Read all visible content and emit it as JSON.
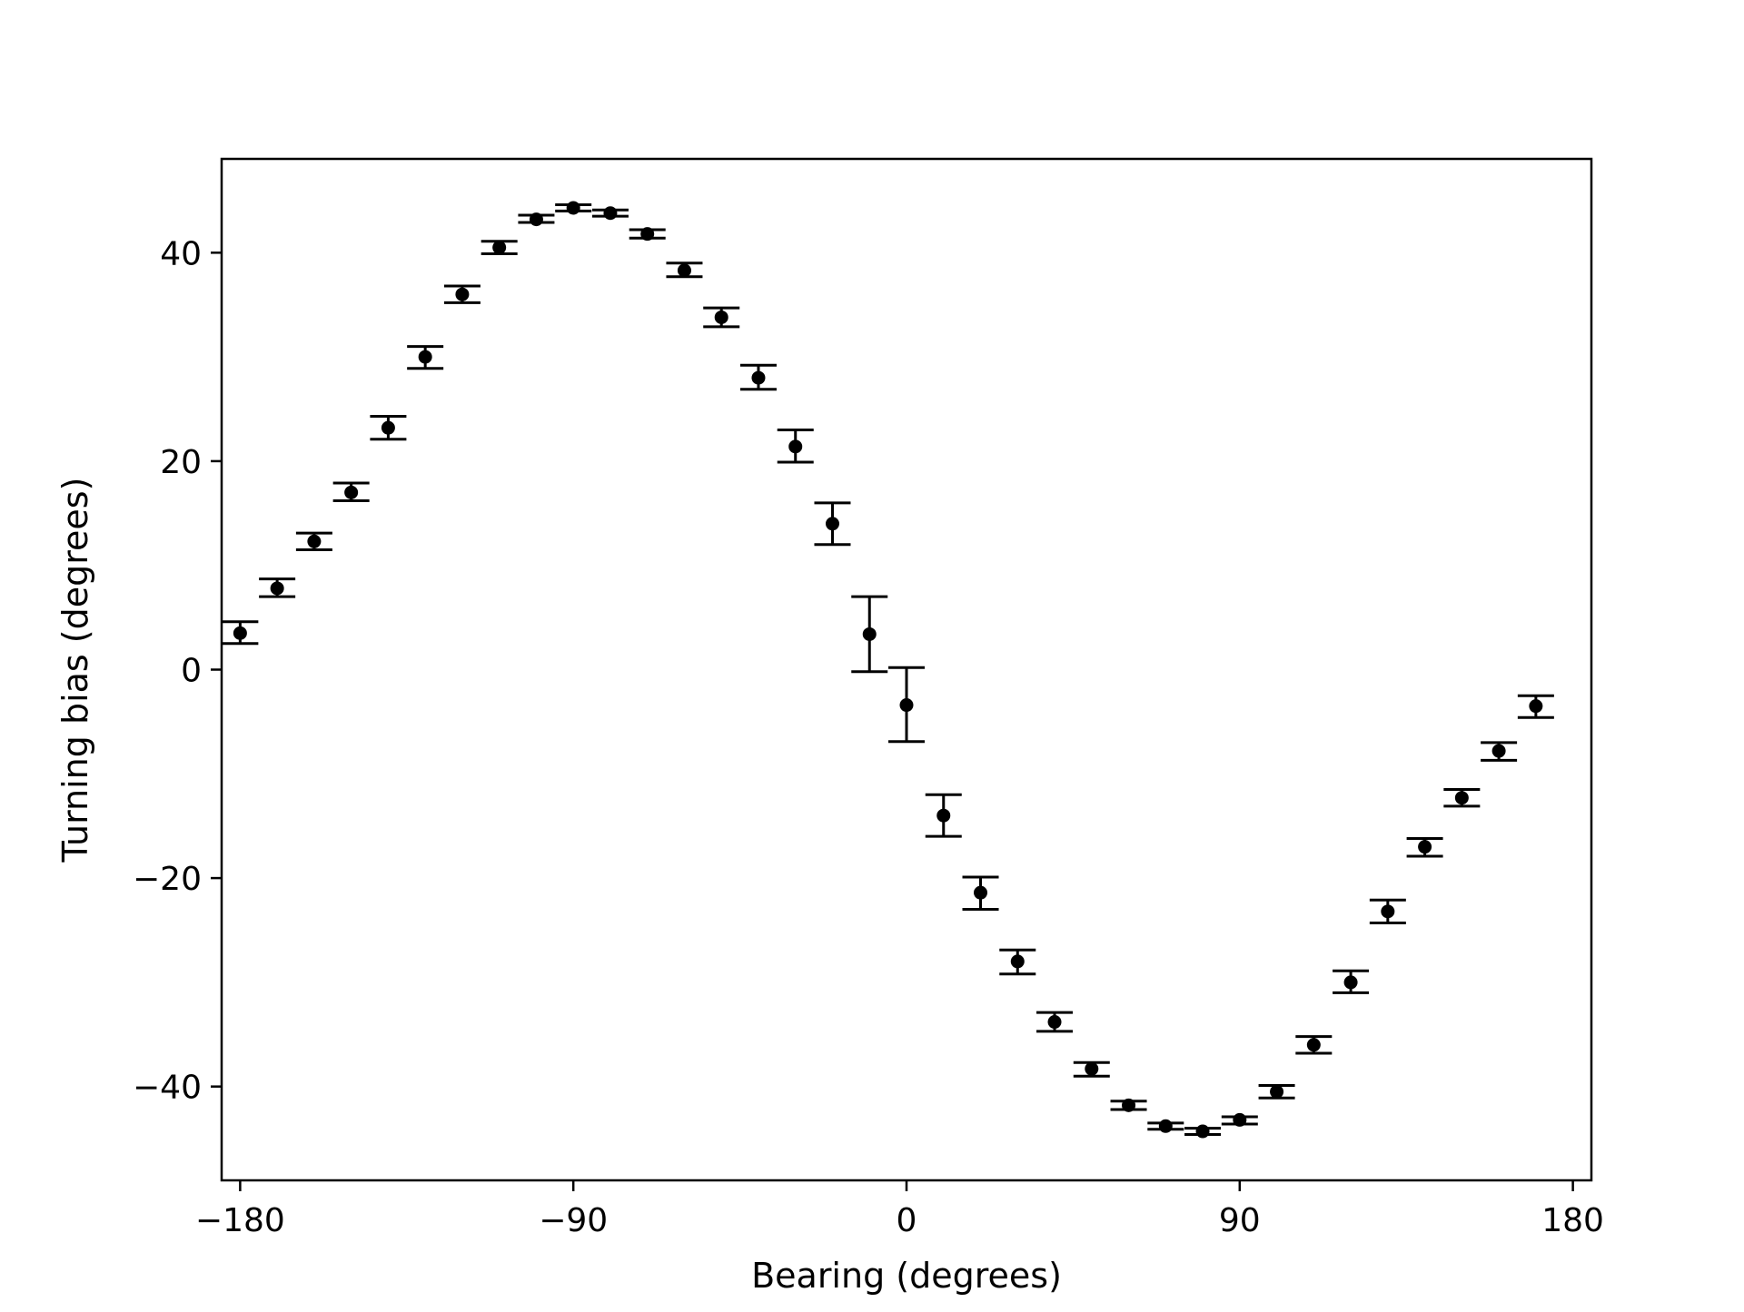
{
  "chart_data": {
    "type": "scatter",
    "title": "",
    "xlabel": "Bearing (degrees)",
    "ylabel": "Turning bias (degrees)",
    "xlim": [
      -185,
      185
    ],
    "ylim": [
      -49,
      49
    ],
    "xticks": [
      -180,
      -90,
      0,
      90,
      180
    ],
    "xtick_labels": [
      "−180",
      "−90",
      "0",
      "90",
      "180"
    ],
    "yticks": [
      40,
      20,
      0,
      -20,
      -40
    ],
    "ytick_labels": [
      "40",
      "20",
      "0",
      "−20",
      "−40"
    ],
    "grid": false,
    "legend": null,
    "marker_color": "#000000",
    "series": [
      {
        "points": [
          {
            "x": -180,
            "y": 3.5,
            "yerr_low": 2.5,
            "yerr_high": 4.6
          },
          {
            "x": -170,
            "y": 7.8,
            "yerr_low": 7.0,
            "yerr_high": 8.7
          },
          {
            "x": -160,
            "y": 12.3,
            "yerr_low": 11.5,
            "yerr_high": 13.1
          },
          {
            "x": -150,
            "y": 17.0,
            "yerr_low": 16.2,
            "yerr_high": 17.9
          },
          {
            "x": -140,
            "y": 23.2,
            "yerr_low": 22.1,
            "yerr_high": 24.3
          },
          {
            "x": -130,
            "y": 30.0,
            "yerr_low": 28.9,
            "yerr_high": 31.0
          },
          {
            "x": -120,
            "y": 36.0,
            "yerr_low": 35.2,
            "yerr_high": 36.8
          },
          {
            "x": -110,
            "y": 40.5,
            "yerr_low": 39.9,
            "yerr_high": 41.1
          },
          {
            "x": -100,
            "y": 43.2,
            "yerr_low": 42.9,
            "yerr_high": 43.6
          },
          {
            "x": -90,
            "y": 44.3,
            "yerr_low": 44.0,
            "yerr_high": 44.6
          },
          {
            "x": -80,
            "y": 43.8,
            "yerr_low": 43.5,
            "yerr_high": 44.1
          },
          {
            "x": -70,
            "y": 41.8,
            "yerr_low": 41.4,
            "yerr_high": 42.2
          },
          {
            "x": -60,
            "y": 38.3,
            "yerr_low": 37.7,
            "yerr_high": 39.0
          },
          {
            "x": -50,
            "y": 33.8,
            "yerr_low": 32.9,
            "yerr_high": 34.7
          },
          {
            "x": -40,
            "y": 28.0,
            "yerr_low": 26.9,
            "yerr_high": 29.2
          },
          {
            "x": -30,
            "y": 21.4,
            "yerr_low": 19.9,
            "yerr_high": 23.0
          },
          {
            "x": -20,
            "y": 14.0,
            "yerr_low": 12.0,
            "yerr_high": 16.0
          },
          {
            "x": -10,
            "y": 3.4,
            "yerr_low": -0.2,
            "yerr_high": 7.0
          },
          {
            "x": 0,
            "y": -3.4,
            "yerr_low": -6.9,
            "yerr_high": 0.2
          },
          {
            "x": 10,
            "y": -14.0,
            "yerr_low": -16.0,
            "yerr_high": -12.0
          },
          {
            "x": 20,
            "y": -21.4,
            "yerr_low": -23.0,
            "yerr_high": -19.9
          },
          {
            "x": 30,
            "y": -28.0,
            "yerr_low": -29.2,
            "yerr_high": -26.9
          },
          {
            "x": 40,
            "y": -33.8,
            "yerr_low": -34.7,
            "yerr_high": -32.9
          },
          {
            "x": 50,
            "y": -38.3,
            "yerr_low": -39.0,
            "yerr_high": -37.7
          },
          {
            "x": 60,
            "y": -41.8,
            "yerr_low": -42.2,
            "yerr_high": -41.4
          },
          {
            "x": 70,
            "y": -43.8,
            "yerr_low": -44.1,
            "yerr_high": -43.5
          },
          {
            "x": 80,
            "y": -44.3,
            "yerr_low": -44.6,
            "yerr_high": -44.0
          },
          {
            "x": 90,
            "y": -43.2,
            "yerr_low": -43.6,
            "yerr_high": -42.9
          },
          {
            "x": 100,
            "y": -40.5,
            "yerr_low": -41.1,
            "yerr_high": -39.9
          },
          {
            "x": 110,
            "y": -36.0,
            "yerr_low": -36.8,
            "yerr_high": -35.2
          },
          {
            "x": 120,
            "y": -30.0,
            "yerr_low": -31.0,
            "yerr_high": -28.9
          },
          {
            "x": 130,
            "y": -23.2,
            "yerr_low": -24.3,
            "yerr_high": -22.1
          },
          {
            "x": 140,
            "y": -17.0,
            "yerr_low": -17.9,
            "yerr_high": -16.2
          },
          {
            "x": 150,
            "y": -12.3,
            "yerr_low": -13.1,
            "yerr_high": -11.5
          },
          {
            "x": 160,
            "y": -7.8,
            "yerr_low": -8.7,
            "yerr_high": -7.0
          },
          {
            "x": 170,
            "y": -3.5,
            "yerr_low": -4.6,
            "yerr_high": -2.5
          }
        ]
      }
    ]
  }
}
